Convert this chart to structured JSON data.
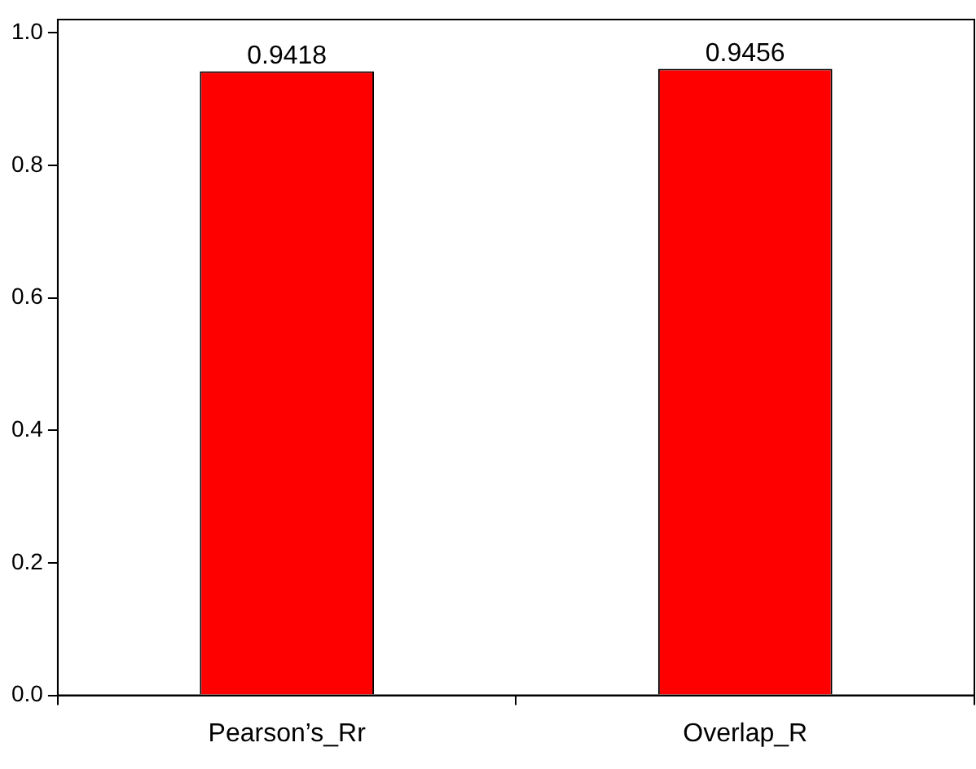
{
  "chart_data": {
    "type": "bar",
    "categories": [
      "Pearson’s_Rr",
      "Overlap_R"
    ],
    "values": [
      0.9418,
      0.9456
    ],
    "color": "#ff0000",
    "ylim": [
      0,
      1.02
    ],
    "yticks": [
      {
        "value": 0,
        "label": "0.0"
      },
      {
        "value": 0.2,
        "label": "0.2"
      },
      {
        "value": 0.4,
        "label": "0.4"
      },
      {
        "value": 0.6,
        "label": "0.6"
      },
      {
        "value": 0.8,
        "label": "0.8"
      },
      {
        "value": 1,
        "label": "1.0"
      }
    ],
    "grid": false,
    "legend": false,
    "data_labels": true
  }
}
